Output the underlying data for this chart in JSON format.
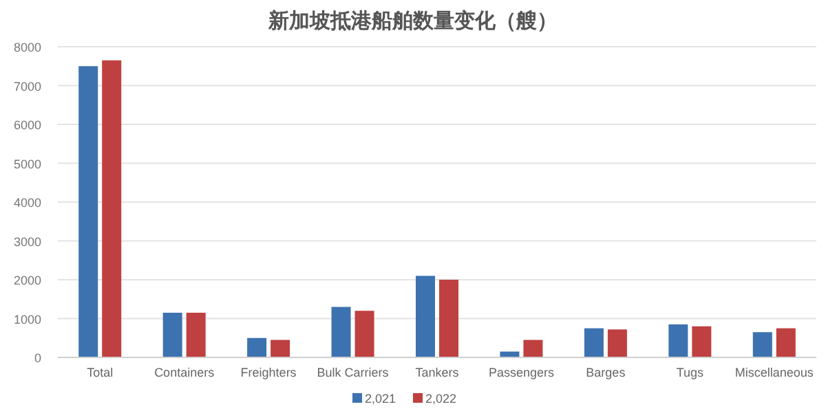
{
  "chart_data": {
    "type": "bar",
    "title": "新加坡抵港船舶数量变化（艘）",
    "categories": [
      "Total",
      "Containers",
      "Freighters",
      "Bulk Carriers",
      "Tankers",
      "Passengers",
      "Barges",
      "Tugs",
      "Miscellaneous"
    ],
    "series": [
      {
        "name": "2,021",
        "color": "#3d72b0",
        "values": [
          7500,
          1150,
          500,
          1300,
          2100,
          150,
          750,
          850,
          650
        ]
      },
      {
        "name": "2,022",
        "color": "#bf4040",
        "values": [
          7650,
          1150,
          450,
          1200,
          2000,
          450,
          720,
          800,
          750
        ]
      }
    ],
    "ylim": [
      0,
      8000
    ],
    "yticks": [
      0,
      1000,
      2000,
      3000,
      4000,
      5000,
      6000,
      7000,
      8000
    ],
    "grid": "y",
    "legend": "bottom"
  }
}
